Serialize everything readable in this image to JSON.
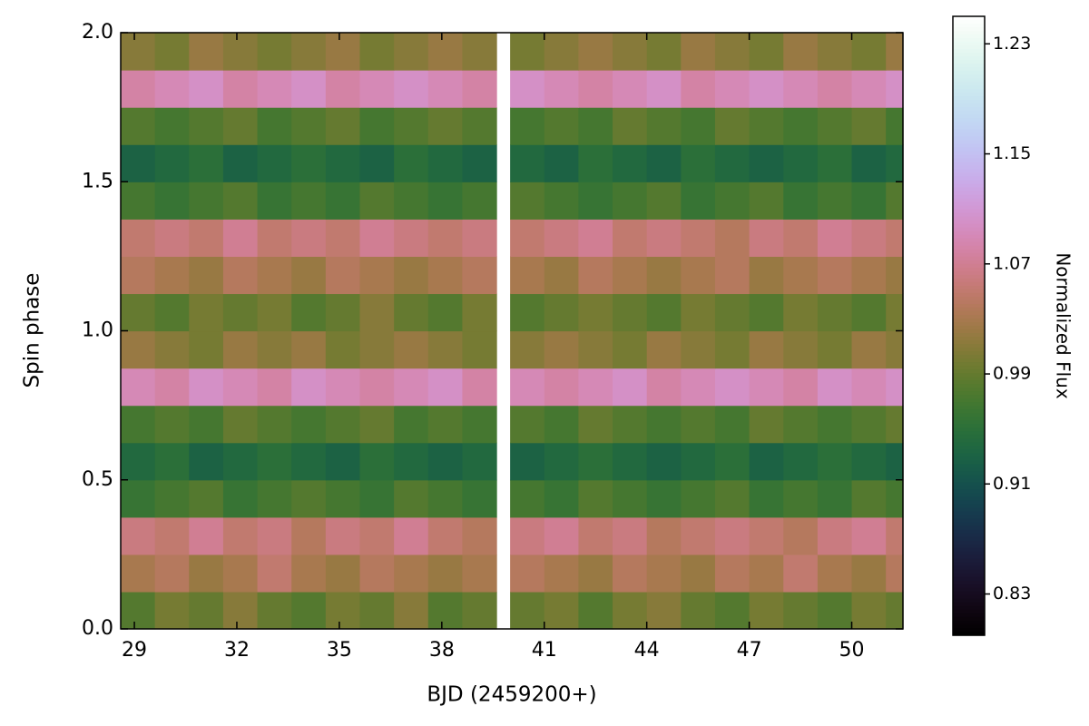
{
  "chart_data": {
    "type": "heatmap",
    "x_label": "BJD (2459200+)",
    "y_label": "Spin phase",
    "colorbar_label": "Normalized Flux",
    "colormap": "cubehelix",
    "xlim": [
      28.6,
      51.5
    ],
    "ylim": [
      0.0,
      2.0
    ],
    "xticks": [
      29,
      32,
      35,
      38,
      41,
      44,
      47,
      50
    ],
    "yticks": [
      {
        "value": 0,
        "label": "0.0"
      },
      0.5,
      {
        "value": 1,
        "label": "1.0"
      },
      1.5,
      {
        "value": 2,
        "label": "2.0"
      }
    ],
    "zlim": [
      0.8,
      1.25
    ],
    "zticks": [
      0.83,
      0.91,
      0.99,
      1.07,
      1.15,
      1.23
    ],
    "x_edges": [
      28.6,
      29.6,
      30.6,
      31.6,
      32.6,
      33.6,
      34.6,
      35.6,
      36.6,
      37.6,
      38.6,
      39.6,
      40.0,
      41.0,
      42.0,
      43.0,
      44.0,
      45.0,
      46.0,
      47.0,
      48.0,
      49.0,
      50.0,
      51.0,
      51.5
    ],
    "y_edges": [
      0,
      0.125,
      0.25,
      0.375,
      0.5,
      0.625,
      0.75,
      0.875,
      1,
      1.125,
      1.25,
      1.375,
      1.5,
      1.625,
      1.75,
      1.875,
      2
    ],
    "z": [
      [
        0.98,
        1.0,
        0.99,
        1.01,
        0.99,
        0.98,
        1.0,
        0.99,
        1.01,
        0.98,
        0.99,
        null,
        0.99,
        1.0,
        0.98,
        1.0,
        1.01,
        0.99,
        0.98,
        1.0,
        0.99,
        0.98,
        1.0,
        0.99
      ],
      [
        1.03,
        1.04,
        1.02,
        1.03,
        1.05,
        1.03,
        1.02,
        1.04,
        1.03,
        1.02,
        1.03,
        null,
        1.04,
        1.03,
        1.02,
        1.04,
        1.03,
        1.02,
        1.04,
        1.03,
        1.05,
        1.03,
        1.02,
        1.04
      ],
      [
        1.06,
        1.05,
        1.07,
        1.05,
        1.06,
        1.04,
        1.06,
        1.05,
        1.07,
        1.05,
        1.04,
        null,
        1.06,
        1.07,
        1.05,
        1.06,
        1.04,
        1.05,
        1.06,
        1.05,
        1.04,
        1.06,
        1.07,
        1.05
      ],
      [
        0.96,
        0.97,
        0.98,
        0.96,
        0.97,
        0.98,
        0.97,
        0.96,
        0.98,
        0.97,
        0.96,
        null,
        0.97,
        0.96,
        0.98,
        0.97,
        0.96,
        0.97,
        0.98,
        0.96,
        0.97,
        0.96,
        0.98,
        0.97
      ],
      [
        0.94,
        0.95,
        0.93,
        0.94,
        0.95,
        0.94,
        0.93,
        0.95,
        0.94,
        0.93,
        0.94,
        null,
        0.93,
        0.94,
        0.95,
        0.94,
        0.93,
        0.94,
        0.95,
        0.93,
        0.94,
        0.95,
        0.94,
        0.93
      ],
      [
        0.97,
        0.98,
        0.97,
        0.99,
        0.98,
        0.97,
        0.98,
        0.99,
        0.97,
        0.98,
        0.97,
        null,
        0.98,
        0.97,
        0.99,
        0.98,
        0.97,
        0.98,
        0.97,
        0.99,
        0.98,
        0.97,
        0.98,
        0.99
      ],
      [
        1.09,
        1.08,
        1.1,
        1.09,
        1.08,
        1.1,
        1.09,
        1.08,
        1.09,
        1.1,
        1.08,
        null,
        1.09,
        1.08,
        1.09,
        1.1,
        1.08,
        1.09,
        1.1,
        1.09,
        1.08,
        1.1,
        1.09,
        1.1
      ],
      [
        1.02,
        1.01,
        1.0,
        1.02,
        1.01,
        1.02,
        1.0,
        1.01,
        1.02,
        1.01,
        1.0,
        null,
        1.01,
        1.02,
        1.01,
        1.0,
        1.02,
        1.01,
        1.0,
        1.02,
        1.01,
        1.0,
        1.02,
        1.01
      ],
      [
        0.99,
        0.98,
        1.0,
        0.99,
        1.0,
        0.98,
        0.99,
        1.01,
        0.99,
        0.98,
        1.0,
        null,
        0.98,
        0.99,
        1.0,
        0.99,
        0.98,
        1.0,
        0.99,
        0.98,
        1.0,
        0.99,
        0.98,
        1.0
      ],
      [
        1.04,
        1.03,
        1.02,
        1.04,
        1.03,
        1.02,
        1.04,
        1.03,
        1.02,
        1.03,
        1.04,
        null,
        1.03,
        1.02,
        1.04,
        1.03,
        1.02,
        1.03,
        1.04,
        1.02,
        1.03,
        1.04,
        1.03,
        1.02
      ],
      [
        1.05,
        1.06,
        1.05,
        1.07,
        1.05,
        1.06,
        1.05,
        1.07,
        1.06,
        1.05,
        1.06,
        null,
        1.05,
        1.06,
        1.07,
        1.05,
        1.06,
        1.05,
        1.04,
        1.06,
        1.05,
        1.07,
        1.06,
        1.05
      ],
      [
        0.97,
        0.96,
        0.97,
        0.98,
        0.96,
        0.97,
        0.96,
        0.98,
        0.97,
        0.96,
        0.97,
        null,
        0.98,
        0.97,
        0.96,
        0.97,
        0.98,
        0.96,
        0.97,
        0.98,
        0.96,
        0.97,
        0.96,
        0.98
      ],
      [
        0.93,
        0.94,
        0.95,
        0.93,
        0.94,
        0.95,
        0.94,
        0.93,
        0.95,
        0.94,
        0.93,
        null,
        0.94,
        0.93,
        0.95,
        0.94,
        0.93,
        0.95,
        0.94,
        0.93,
        0.94,
        0.95,
        0.93,
        0.94
      ],
      [
        0.98,
        0.97,
        0.98,
        0.99,
        0.97,
        0.98,
        0.99,
        0.97,
        0.98,
        0.99,
        0.98,
        null,
        0.97,
        0.98,
        0.97,
        0.99,
        0.98,
        0.97,
        0.99,
        0.98,
        0.97,
        0.98,
        0.99,
        0.97
      ],
      [
        1.08,
        1.09,
        1.1,
        1.08,
        1.09,
        1.1,
        1.08,
        1.09,
        1.1,
        1.09,
        1.08,
        null,
        1.1,
        1.09,
        1.08,
        1.09,
        1.1,
        1.08,
        1.09,
        1.1,
        1.09,
        1.08,
        1.09,
        1.1
      ],
      [
        1.01,
        1.0,
        1.02,
        1.01,
        1.0,
        1.01,
        1.02,
        1.0,
        1.01,
        1.02,
        1.01,
        null,
        1.0,
        1.01,
        1.02,
        1.01,
        1.0,
        1.02,
        1.01,
        1.0,
        1.02,
        1.01,
        1.0,
        1.02
      ]
    ]
  }
}
